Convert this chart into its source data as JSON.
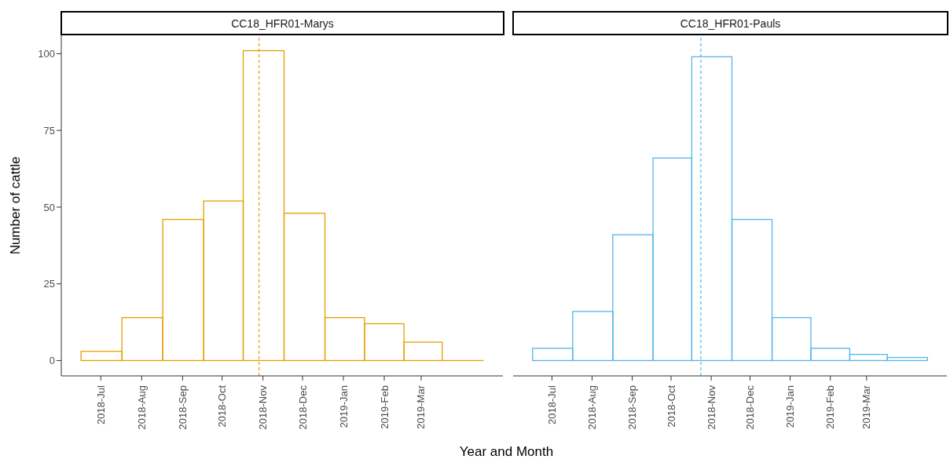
{
  "chart_data": [
    {
      "type": "histogram",
      "title": "CC18_HFR01-Marys",
      "ylabel": "Number of cattle",
      "xlabel": "Year and Month",
      "bins": [
        "2018-06-16",
        "2018-07-17",
        "2018-08-17",
        "2018-09-17",
        "2018-10-17",
        "2018-11-17",
        "2018-12-18",
        "2019-01-17",
        "2019-02-16",
        "2019-03-17",
        "2019-04-17"
      ],
      "values": [
        3,
        14,
        46,
        52,
        101,
        48,
        14,
        12,
        6,
        0
      ],
      "color": "#e69f00",
      "xlim": [
        "2018-06-01",
        "2019-05-02"
      ],
      "xticks": [
        {
          "value": "2018-07-01",
          "label": "2018-Jul"
        },
        {
          "value": "2018-08-01",
          "label": "2018-Aug"
        },
        {
          "value": "2018-09-01",
          "label": "2018-Sep"
        },
        {
          "value": "2018-10-01",
          "label": "2018-Oct"
        },
        {
          "value": "2018-11-01",
          "label": "2018-Nov"
        },
        {
          "value": "2018-12-01",
          "label": "2018-Dec"
        },
        {
          "value": "2019-01-01",
          "label": "2019-Jan"
        },
        {
          "value": "2019-02-01",
          "label": "2019-Feb"
        },
        {
          "value": "2019-03-01",
          "label": "2019-Mar"
        }
      ],
      "ylim": [
        -5,
        106
      ],
      "yticks": [
        0,
        25,
        50,
        75,
        100
      ],
      "ref_lines": [
        {
          "axis": "x",
          "value": "2018-10-29",
          "color": "#e69f00",
          "line_style": "dashed"
        }
      ],
      "grid": false,
      "legend": false
    },
    {
      "type": "histogram",
      "title": "CC18_HFR01-Pauls",
      "bins": [
        "2018-06-16",
        "2018-07-17",
        "2018-08-17",
        "2018-09-17",
        "2018-10-17",
        "2018-11-17",
        "2018-12-18",
        "2019-01-17",
        "2019-02-16",
        "2019-03-17",
        "2019-04-17"
      ],
      "values": [
        4,
        16,
        41,
        66,
        99,
        46,
        14,
        4,
        2,
        1
      ],
      "color": "#56b4e9",
      "xlim": [
        "2018-06-01",
        "2019-05-02"
      ],
      "xticks": [
        {
          "value": "2018-07-01",
          "label": "2018-Jul"
        },
        {
          "value": "2018-08-01",
          "label": "2018-Aug"
        },
        {
          "value": "2018-09-01",
          "label": "2018-Sep"
        },
        {
          "value": "2018-10-01",
          "label": "2018-Oct"
        },
        {
          "value": "2018-11-01",
          "label": "2018-Nov"
        },
        {
          "value": "2018-12-01",
          "label": "2018-Dec"
        },
        {
          "value": "2019-01-01",
          "label": "2019-Jan"
        },
        {
          "value": "2019-02-01",
          "label": "2019-Feb"
        },
        {
          "value": "2019-03-01",
          "label": "2019-Mar"
        }
      ],
      "ylim": [
        -5,
        106
      ],
      "yticks": [
        0,
        25,
        50,
        75,
        100
      ],
      "tick_labels": "x",
      "ref_lines": [
        {
          "axis": "x",
          "value": "2018-10-24",
          "color": "#56b4e9",
          "line_style": "dashed"
        }
      ],
      "grid": false,
      "legend": false
    }
  ]
}
